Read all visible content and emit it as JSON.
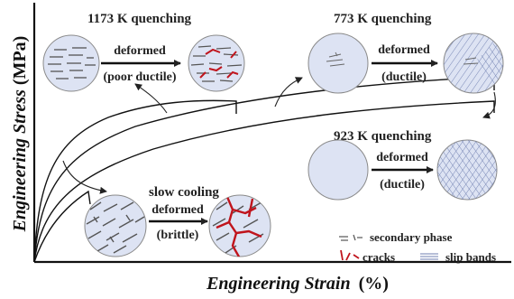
{
  "axes": {
    "x_title": "Engineering Strain",
    "x_unit": "(%)",
    "y_title": "Engineering Stress",
    "y_unit": "(MPa)"
  },
  "conditions": {
    "q1173": {
      "title": "1173 K quenching",
      "arrow_top": "deformed",
      "arrow_bottom": "(poor ductile)"
    },
    "q773": {
      "title": "773 K quenching",
      "arrow_top": "deformed",
      "arrow_bottom": "(ductile)"
    },
    "q923": {
      "title": "923 K quenching",
      "arrow_top": "deformed",
      "arrow_bottom": "(ductile)"
    },
    "slow": {
      "title": "slow cooling",
      "arrow_top": "deformed",
      "arrow_bottom": "(brittle)"
    }
  },
  "legend": {
    "secondary_phase": "secondary phase",
    "cracks": "cracks",
    "slip_bands": "slip bands"
  },
  "colors": {
    "disc_fill": "#dde3f3",
    "disc_stroke": "#8a8a8a",
    "phase": "#555555",
    "crack": "#c0141c",
    "slip": "#6f7fb0"
  }
}
